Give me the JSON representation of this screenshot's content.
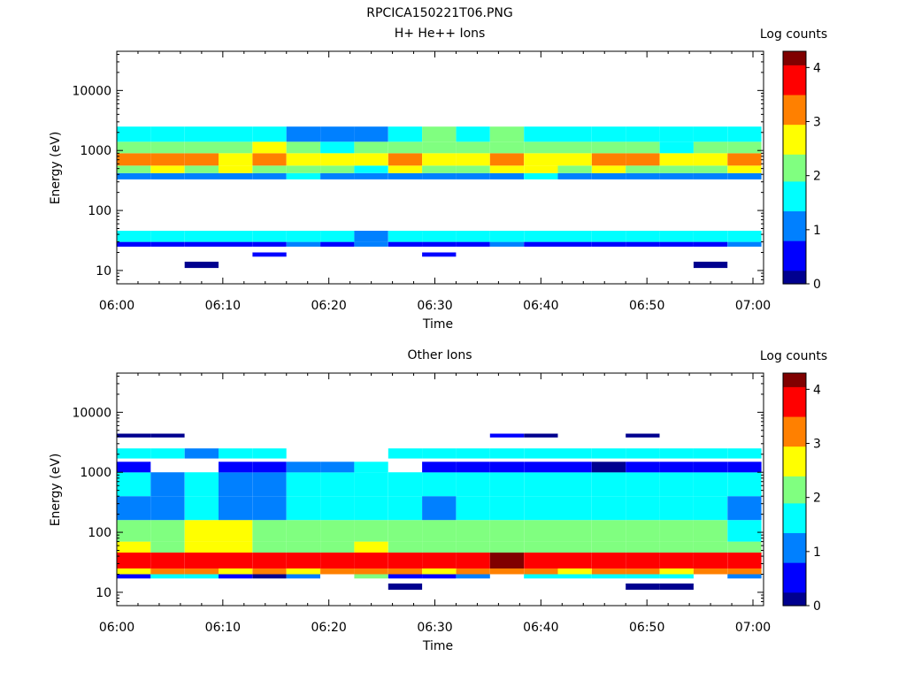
{
  "figure_title": "RPCICA150221T06.PNG",
  "colormap": [
    "#00008f",
    "#0000ff",
    "#0080ff",
    "#00ffff",
    "#80ff80",
    "#ffff00",
    "#ff8000",
    "#ff0000",
    "#800000"
  ],
  "chart_data": [
    {
      "type": "heatmap",
      "title": "H+ He++ Ions",
      "xlabel": "Time",
      "ylabel": "Energy (eV)",
      "x_ticks": [
        "06:00",
        "06:10",
        "06:20",
        "06:30",
        "06:40",
        "06:50",
        "07:00"
      ],
      "y_ticks": [
        "10",
        "100",
        "1000",
        "10000"
      ],
      "y_scale": "log",
      "ylim": [
        6,
        45000
      ],
      "xlim_minutes": [
        0,
        61
      ],
      "colorbar": {
        "label": "Log counts",
        "ticks": [
          "0",
          "1",
          "2",
          "3",
          "4"
        ],
        "range": [
          0,
          4.3
        ]
      },
      "time_columns_minutes": [
        0,
        3.2,
        6.4,
        9.6,
        12.8,
        16,
        19.2,
        22.4,
        25.6,
        28.8,
        32,
        35.2,
        38.4,
        41.6,
        44.8,
        48,
        51.2,
        54.4,
        57.6
      ],
      "bands": [
        {
          "e_low": 25,
          "e_high": 30,
          "levels": [
            0.5,
            0.6,
            0.4,
            0.6,
            0.8,
            0.9,
            0.8,
            1.0,
            0.7,
            0.8,
            0.6,
            0.9,
            0.7,
            0.5,
            0.8,
            0.7,
            0.6,
            0.8,
            0.9
          ]
        },
        {
          "e_low": 30,
          "e_high": 46,
          "levels": [
            1.7,
            1.5,
            1.6,
            1.5,
            1.4,
            1.5,
            1.6,
            1.3,
            1.5,
            1.4,
            1.5,
            1.8,
            1.4,
            1.5,
            1.6,
            1.5,
            1.4,
            1.5,
            1.6
          ]
        },
        {
          "e_low": 330,
          "e_high": 420,
          "levels": [
            1.2,
            1.1,
            1.0,
            1.3,
            1.2,
            1.4,
            1.1,
            1.2,
            1.3,
            1.2,
            1.1,
            1.3,
            1.4,
            1.2,
            1.3,
            1.2,
            1.1,
            1.3,
            1.2
          ]
        },
        {
          "e_low": 420,
          "e_high": 560,
          "levels": [
            2.4,
            2.5,
            2.2,
            2.6,
            2.3,
            2.0,
            2.1,
            1.8,
            2.6,
            2.4,
            2.3,
            2.5,
            2.6,
            2.4,
            2.5,
            2.3,
            2.2,
            2.4,
            2.5
          ]
        },
        {
          "e_low": 560,
          "e_high": 900,
          "levels": [
            3.1,
            3.0,
            3.2,
            2.9,
            3.0,
            2.5,
            2.6,
            2.7,
            3.2,
            2.9,
            2.8,
            3.1,
            2.8,
            2.9,
            3.2,
            3.0,
            2.9,
            2.8,
            3.0
          ]
        },
        {
          "e_low": 900,
          "e_high": 1400,
          "levels": [
            2.2,
            2.4,
            2.0,
            2.3,
            2.5,
            1.9,
            1.7,
            2.0,
            2.1,
            2.2,
            1.9,
            2.4,
            2.0,
            2.2,
            2.3,
            2.1,
            1.8,
            2.2,
            2.1
          ]
        },
        {
          "e_low": 1400,
          "e_high": 2500,
          "levels": [
            1.6,
            1.4,
            1.5,
            1.7,
            1.5,
            1.2,
            1.0,
            0.9,
            1.8,
            1.9,
            1.7,
            2.0,
            1.8,
            1.6,
            1.7,
            1.8,
            1.6,
            1.7,
            1.8
          ]
        },
        {
          "e_low": 11,
          "e_high": 14,
          "levels": [
            0,
            0,
            0.2,
            0,
            0,
            0,
            0,
            0,
            0,
            0,
            0,
            0,
            0,
            0,
            0,
            0,
            0,
            0.2,
            0
          ]
        },
        {
          "e_low": 17,
          "e_high": 20,
          "levels": [
            0,
            0,
            0,
            0,
            0.3,
            0,
            0,
            0,
            0,
            0.3,
            0,
            0,
            0,
            0,
            0,
            0,
            0,
            0,
            0
          ]
        }
      ]
    },
    {
      "type": "heatmap",
      "title": "Other Ions",
      "xlabel": "Time",
      "ylabel": "Energy (eV)",
      "x_ticks": [
        "06:00",
        "06:10",
        "06:20",
        "06:30",
        "06:40",
        "06:50",
        "07:00"
      ],
      "y_ticks": [
        "10",
        "100",
        "1000",
        "10000"
      ],
      "y_scale": "log",
      "ylim": [
        6,
        45000
      ],
      "xlim_minutes": [
        0,
        61
      ],
      "colorbar": {
        "label": "Log counts",
        "ticks": [
          "0",
          "1",
          "2",
          "3",
          "4"
        ],
        "range": [
          0,
          4.3
        ]
      },
      "time_columns_minutes": [
        0,
        3.2,
        6.4,
        9.6,
        12.8,
        16,
        19.2,
        22.4,
        25.6,
        28.8,
        32,
        35.2,
        38.4,
        41.6,
        44.8,
        48,
        51.2,
        54.4,
        57.6
      ],
      "bands": [
        {
          "e_low": 17,
          "e_high": 20,
          "levels": [
            0.3,
            1.6,
            1.8,
            0.5,
            0.2,
            1.0,
            0,
            1.9,
            0.4,
            0.3,
            1.0,
            0,
            1.8,
            1.7,
            1.5,
            1.6,
            1.8,
            0,
            1.2
          ]
        },
        {
          "e_low": 20,
          "e_high": 25,
          "levels": [
            2.9,
            3.0,
            3.1,
            2.8,
            3.0,
            2.9,
            3.0,
            3.2,
            3.1,
            2.9,
            3.0,
            3.3,
            3.0,
            2.9,
            3.0,
            3.1,
            2.9,
            3.0,
            3.1
          ]
        },
        {
          "e_low": 25,
          "e_high": 46,
          "levels": [
            3.7,
            3.5,
            3.6,
            3.7,
            3.8,
            3.9,
            4.0,
            3.5,
            3.6,
            3.9,
            4.0,
            4.2,
            3.8,
            3.7,
            3.9,
            3.8,
            3.6,
            3.9,
            3.7
          ]
        },
        {
          "e_low": 46,
          "e_high": 70,
          "levels": [
            2.6,
            2.4,
            2.5,
            2.7,
            2.3,
            2.2,
            2.0,
            2.5,
            2.4,
            2.2,
            2.1,
            2.3,
            2.0,
            2.4,
            2.2,
            2.1,
            2.3,
            2.0,
            2.2
          ]
        },
        {
          "e_low": 70,
          "e_high": 160,
          "levels": [
            2.2,
            2.4,
            2.6,
            2.5,
            2.3,
            2.1,
            2.0,
            2.2,
            2.3,
            2.0,
            2.2,
            2.1,
            2.0,
            2.2,
            2.1,
            2.0,
            2.2,
            1.9,
            1.8
          ]
        },
        {
          "e_low": 160,
          "e_high": 400,
          "levels": [
            1.3,
            1.2,
            1.6,
            1.1,
            0.9,
            1.8,
            1.6,
            1.5,
            1.4,
            1.3,
            1.4,
            1.6,
            1.5,
            1.7,
            1.8,
            1.6,
            1.5,
            1.4,
            1.2
          ]
        },
        {
          "e_low": 400,
          "e_high": 1000,
          "levels": [
            1.4,
            1.1,
            1.7,
            1.3,
            1.2,
            1.5,
            1.4,
            1.6,
            1.6,
            1.4,
            1.5,
            1.7,
            1.5,
            1.6,
            1.4,
            1.5,
            1.6,
            1.5,
            1.4
          ]
        },
        {
          "e_low": 1000,
          "e_high": 1500,
          "levels": [
            0.4,
            0,
            0,
            0.3,
            0.5,
            1.0,
            1.2,
            1.4,
            0,
            0.3,
            0.5,
            0.6,
            0.4,
            0.3,
            0.2,
            0.4,
            0.5,
            0.3,
            0.6
          ]
        },
        {
          "e_low": 1700,
          "e_high": 2500,
          "levels": [
            1.5,
            1.4,
            1.2,
            1.5,
            1.6,
            0,
            0,
            0,
            1.8,
            1.6,
            1.5,
            1.8,
            1.7,
            1.6,
            1.7,
            1.5,
            1.6,
            1.7,
            1.6
          ]
        },
        {
          "e_low": 11,
          "e_high": 14,
          "levels": [
            0,
            0,
            0,
            0,
            0,
            0,
            0,
            0,
            0.1,
            0,
            0,
            0,
            0,
            0,
            0,
            0.1,
            0.1,
            0,
            0
          ]
        },
        {
          "e_low": 3800,
          "e_high": 4400,
          "levels": [
            0.2,
            0.2,
            0,
            0,
            0,
            0,
            0,
            0,
            0,
            0,
            0,
            0.3,
            0.2,
            0,
            0,
            0.2,
            0,
            0,
            0
          ]
        }
      ]
    }
  ]
}
